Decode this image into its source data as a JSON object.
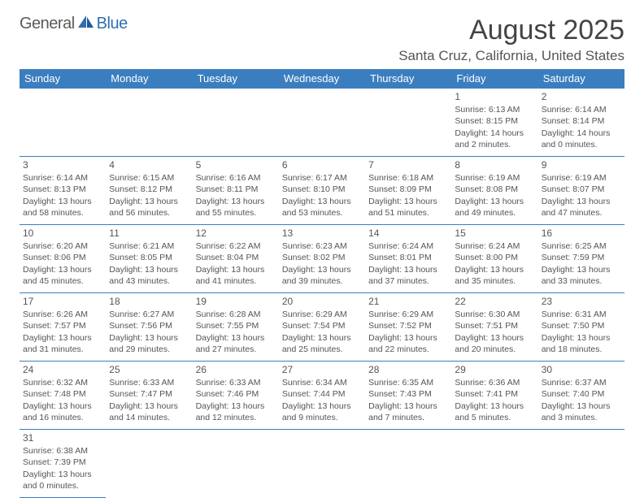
{
  "logo": {
    "text1": "General",
    "text2": "Blue"
  },
  "title": "August 2025",
  "location": "Santa Cruz, California, United States",
  "colors": {
    "header_bg": "#3b7ec0",
    "header_text": "#ffffff",
    "border": "#3b7ec0",
    "body_text": "#555555",
    "logo_grey": "#5a5a5a",
    "logo_blue": "#2f6fb0"
  },
  "day_headers": [
    "Sunday",
    "Monday",
    "Tuesday",
    "Wednesday",
    "Thursday",
    "Friday",
    "Saturday"
  ],
  "weeks": [
    [
      null,
      null,
      null,
      null,
      null,
      {
        "n": "1",
        "sr": "Sunrise: 6:13 AM",
        "ss": "Sunset: 8:15 PM",
        "d1": "Daylight: 14 hours",
        "d2": "and 2 minutes."
      },
      {
        "n": "2",
        "sr": "Sunrise: 6:14 AM",
        "ss": "Sunset: 8:14 PM",
        "d1": "Daylight: 14 hours",
        "d2": "and 0 minutes."
      }
    ],
    [
      {
        "n": "3",
        "sr": "Sunrise: 6:14 AM",
        "ss": "Sunset: 8:13 PM",
        "d1": "Daylight: 13 hours",
        "d2": "and 58 minutes."
      },
      {
        "n": "4",
        "sr": "Sunrise: 6:15 AM",
        "ss": "Sunset: 8:12 PM",
        "d1": "Daylight: 13 hours",
        "d2": "and 56 minutes."
      },
      {
        "n": "5",
        "sr": "Sunrise: 6:16 AM",
        "ss": "Sunset: 8:11 PM",
        "d1": "Daylight: 13 hours",
        "d2": "and 55 minutes."
      },
      {
        "n": "6",
        "sr": "Sunrise: 6:17 AM",
        "ss": "Sunset: 8:10 PM",
        "d1": "Daylight: 13 hours",
        "d2": "and 53 minutes."
      },
      {
        "n": "7",
        "sr": "Sunrise: 6:18 AM",
        "ss": "Sunset: 8:09 PM",
        "d1": "Daylight: 13 hours",
        "d2": "and 51 minutes."
      },
      {
        "n": "8",
        "sr": "Sunrise: 6:19 AM",
        "ss": "Sunset: 8:08 PM",
        "d1": "Daylight: 13 hours",
        "d2": "and 49 minutes."
      },
      {
        "n": "9",
        "sr": "Sunrise: 6:19 AM",
        "ss": "Sunset: 8:07 PM",
        "d1": "Daylight: 13 hours",
        "d2": "and 47 minutes."
      }
    ],
    [
      {
        "n": "10",
        "sr": "Sunrise: 6:20 AM",
        "ss": "Sunset: 8:06 PM",
        "d1": "Daylight: 13 hours",
        "d2": "and 45 minutes."
      },
      {
        "n": "11",
        "sr": "Sunrise: 6:21 AM",
        "ss": "Sunset: 8:05 PM",
        "d1": "Daylight: 13 hours",
        "d2": "and 43 minutes."
      },
      {
        "n": "12",
        "sr": "Sunrise: 6:22 AM",
        "ss": "Sunset: 8:04 PM",
        "d1": "Daylight: 13 hours",
        "d2": "and 41 minutes."
      },
      {
        "n": "13",
        "sr": "Sunrise: 6:23 AM",
        "ss": "Sunset: 8:02 PM",
        "d1": "Daylight: 13 hours",
        "d2": "and 39 minutes."
      },
      {
        "n": "14",
        "sr": "Sunrise: 6:24 AM",
        "ss": "Sunset: 8:01 PM",
        "d1": "Daylight: 13 hours",
        "d2": "and 37 minutes."
      },
      {
        "n": "15",
        "sr": "Sunrise: 6:24 AM",
        "ss": "Sunset: 8:00 PM",
        "d1": "Daylight: 13 hours",
        "d2": "and 35 minutes."
      },
      {
        "n": "16",
        "sr": "Sunrise: 6:25 AM",
        "ss": "Sunset: 7:59 PM",
        "d1": "Daylight: 13 hours",
        "d2": "and 33 minutes."
      }
    ],
    [
      {
        "n": "17",
        "sr": "Sunrise: 6:26 AM",
        "ss": "Sunset: 7:57 PM",
        "d1": "Daylight: 13 hours",
        "d2": "and 31 minutes."
      },
      {
        "n": "18",
        "sr": "Sunrise: 6:27 AM",
        "ss": "Sunset: 7:56 PM",
        "d1": "Daylight: 13 hours",
        "d2": "and 29 minutes."
      },
      {
        "n": "19",
        "sr": "Sunrise: 6:28 AM",
        "ss": "Sunset: 7:55 PM",
        "d1": "Daylight: 13 hours",
        "d2": "and 27 minutes."
      },
      {
        "n": "20",
        "sr": "Sunrise: 6:29 AM",
        "ss": "Sunset: 7:54 PM",
        "d1": "Daylight: 13 hours",
        "d2": "and 25 minutes."
      },
      {
        "n": "21",
        "sr": "Sunrise: 6:29 AM",
        "ss": "Sunset: 7:52 PM",
        "d1": "Daylight: 13 hours",
        "d2": "and 22 minutes."
      },
      {
        "n": "22",
        "sr": "Sunrise: 6:30 AM",
        "ss": "Sunset: 7:51 PM",
        "d1": "Daylight: 13 hours",
        "d2": "and 20 minutes."
      },
      {
        "n": "23",
        "sr": "Sunrise: 6:31 AM",
        "ss": "Sunset: 7:50 PM",
        "d1": "Daylight: 13 hours",
        "d2": "and 18 minutes."
      }
    ],
    [
      {
        "n": "24",
        "sr": "Sunrise: 6:32 AM",
        "ss": "Sunset: 7:48 PM",
        "d1": "Daylight: 13 hours",
        "d2": "and 16 minutes."
      },
      {
        "n": "25",
        "sr": "Sunrise: 6:33 AM",
        "ss": "Sunset: 7:47 PM",
        "d1": "Daylight: 13 hours",
        "d2": "and 14 minutes."
      },
      {
        "n": "26",
        "sr": "Sunrise: 6:33 AM",
        "ss": "Sunset: 7:46 PM",
        "d1": "Daylight: 13 hours",
        "d2": "and 12 minutes."
      },
      {
        "n": "27",
        "sr": "Sunrise: 6:34 AM",
        "ss": "Sunset: 7:44 PM",
        "d1": "Daylight: 13 hours",
        "d2": "and 9 minutes."
      },
      {
        "n": "28",
        "sr": "Sunrise: 6:35 AM",
        "ss": "Sunset: 7:43 PM",
        "d1": "Daylight: 13 hours",
        "d2": "and 7 minutes."
      },
      {
        "n": "29",
        "sr": "Sunrise: 6:36 AM",
        "ss": "Sunset: 7:41 PM",
        "d1": "Daylight: 13 hours",
        "d2": "and 5 minutes."
      },
      {
        "n": "30",
        "sr": "Sunrise: 6:37 AM",
        "ss": "Sunset: 7:40 PM",
        "d1": "Daylight: 13 hours",
        "d2": "and 3 minutes."
      }
    ],
    [
      {
        "n": "31",
        "sr": "Sunrise: 6:38 AM",
        "ss": "Sunset: 7:39 PM",
        "d1": "Daylight: 13 hours",
        "d2": "and 0 minutes."
      },
      null,
      null,
      null,
      null,
      null,
      null
    ]
  ]
}
